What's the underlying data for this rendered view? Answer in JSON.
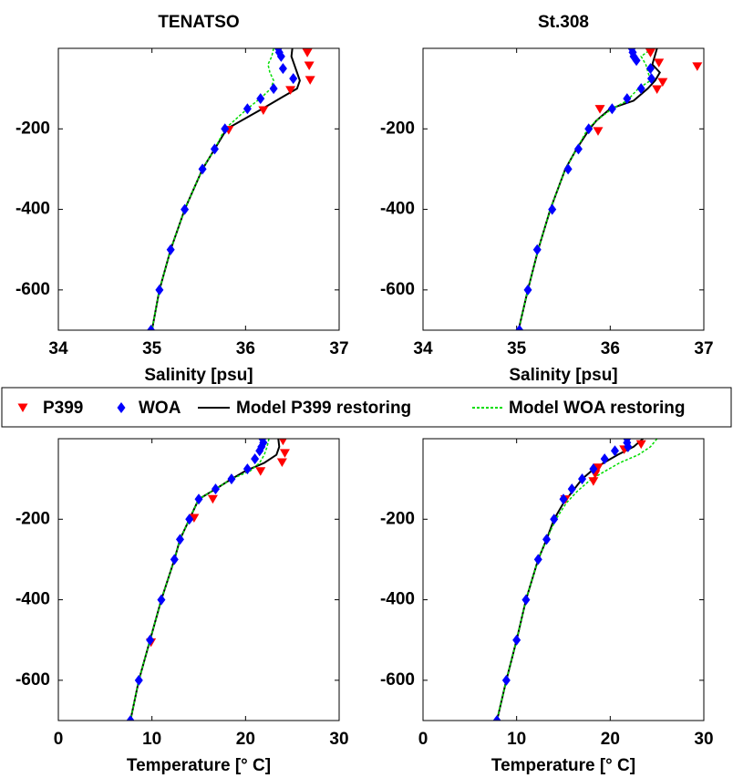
{
  "chart_data": [
    {
      "type": "line",
      "title": "TENATSO",
      "xlabel": "Salinity [psu]",
      "xlim": [
        34,
        37
      ],
      "ylim": [
        -700,
        0
      ],
      "xticks": [
        34,
        35,
        36,
        37
      ],
      "yticks": [
        -600,
        -400,
        -200
      ],
      "series": [
        {
          "name": "P399",
          "color": "#ff0000",
          "marker": "triangle-down",
          "linestyle": null,
          "x": [
            36.66,
            36.68,
            36.69,
            36.48,
            36.19,
            35.82
          ],
          "y": [
            -11,
            -43,
            -79,
            -104,
            -154,
            -203
          ]
        },
        {
          "name": "WOA",
          "color": "#0000ff",
          "marker": "diamond",
          "linestyle": null,
          "x": [
            36.35,
            36.36,
            36.38,
            36.4,
            36.51,
            36.3,
            36.16,
            36.02,
            35.78,
            35.67,
            35.54,
            35.35,
            35.2,
            35.08,
            34.99
          ],
          "y": [
            0,
            -10,
            -20,
            -50,
            -75,
            -100,
            -125,
            -150,
            -200,
            -250,
            -300,
            -400,
            -500,
            -600,
            -700
          ]
        },
        {
          "name": "Model P399 restoring",
          "color": "#000000",
          "marker": null,
          "linestyle": "solid",
          "x": [
            36.5,
            36.49,
            36.52,
            36.55,
            36.58,
            36.55,
            36.4,
            36.18,
            35.8,
            35.67,
            35.54,
            35.35,
            35.2,
            35.08,
            35.0
          ],
          "y": [
            0,
            -20,
            -40,
            -60,
            -80,
            -100,
            -120,
            -150,
            -200,
            -250,
            -300,
            -400,
            -500,
            -600,
            -700
          ]
        },
        {
          "name": "Model WOA restoring",
          "color": "#00dd00",
          "marker": null,
          "linestyle": "dotted",
          "x": [
            36.3,
            36.28,
            36.24,
            36.26,
            36.3,
            36.27,
            36.18,
            36.02,
            35.78,
            35.67,
            35.54,
            35.35,
            35.2,
            35.08,
            35.0
          ],
          "y": [
            0,
            -20,
            -40,
            -60,
            -80,
            -100,
            -120,
            -150,
            -200,
            -250,
            -300,
            -400,
            -500,
            -600,
            -700
          ]
        }
      ]
    },
    {
      "type": "line",
      "title": "St.308",
      "xlabel": "Salinity [psu]",
      "xlim": [
        34,
        37
      ],
      "ylim": [
        -700,
        0
      ],
      "xticks": [
        34,
        35,
        36,
        37
      ],
      "yticks": [
        -600,
        -400,
        -200
      ],
      "series": [
        {
          "color": "#ff0000",
          "marker": "triangle-down",
          "linestyle": null,
          "x": [
            36.43,
            36.52,
            36.93,
            36.56,
            36.5,
            35.89,
            35.87
          ],
          "y": [
            -11,
            -36,
            -45,
            -84,
            -102,
            -151,
            -206
          ]
        },
        {
          "color": "#0000ff",
          "marker": "diamond",
          "linestyle": null,
          "x": [
            36.23,
            36.24,
            36.25,
            36.28,
            36.43,
            36.44,
            36.33,
            36.18,
            36.02,
            35.77,
            35.66,
            35.55,
            35.38,
            35.22,
            35.12,
            35.03
          ],
          "y": [
            0,
            -10,
            -20,
            -30,
            -50,
            -75,
            -100,
            -125,
            -150,
            -200,
            -250,
            -300,
            -400,
            -500,
            -600,
            -700
          ]
        },
        {
          "color": "#000000",
          "marker": null,
          "linestyle": "solid",
          "x": [
            36.5,
            36.45,
            36.53,
            36.48,
            36.4,
            36.25,
            36.0,
            35.85,
            35.78,
            35.64,
            35.52,
            35.36,
            35.23,
            35.12,
            35.02
          ],
          "y": [
            0,
            -40,
            -60,
            -80,
            -100,
            -130,
            -150,
            -180,
            -200,
            -250,
            -300,
            -400,
            -500,
            -600,
            -700
          ]
        },
        {
          "color": "#00dd00",
          "marker": null,
          "linestyle": "dotted",
          "x": [
            36.45,
            36.33,
            36.38,
            36.43,
            36.3,
            36.18,
            36.02,
            35.85,
            35.76,
            35.64,
            35.52,
            35.36,
            35.23,
            35.12,
            35.02
          ],
          "y": [
            0,
            -20,
            -40,
            -80,
            -100,
            -130,
            -150,
            -180,
            -200,
            -250,
            -300,
            -400,
            -500,
            -600,
            -700
          ]
        }
      ]
    },
    {
      "type": "line",
      "xlabel": "Temperature [° C]",
      "xlim": [
        0,
        30
      ],
      "ylim": [
        -700,
        0
      ],
      "xticks": [
        0,
        10,
        20,
        30
      ],
      "yticks": [
        -600,
        -400,
        -200
      ],
      "series": [
        {
          "color": "#ff0000",
          "marker": "triangle-down",
          "linestyle": null,
          "x": [
            24.0,
            24.2,
            23.9,
            21.6,
            16.5,
            14.5,
            9.9
          ],
          "y": [
            -5,
            -36,
            -59,
            -81,
            -150,
            -197,
            -506
          ]
        },
        {
          "color": "#0000ff",
          "marker": "diamond",
          "linestyle": null,
          "x": [
            21.8,
            21.9,
            21.7,
            21.5,
            21.0,
            20.2,
            18.5,
            16.8,
            15.0,
            14.0,
            13.0,
            12.4,
            11.0,
            9.8,
            8.6,
            7.7
          ],
          "y": [
            0,
            -10,
            -20,
            -30,
            -50,
            -75,
            -100,
            -125,
            -150,
            -200,
            -250,
            -300,
            -400,
            -500,
            -600,
            -700
          ]
        },
        {
          "color": "#000000",
          "marker": null,
          "linestyle": "solid",
          "x": [
            23.5,
            23.6,
            23.3,
            22.0,
            20.0,
            18.5,
            16.8,
            15.0,
            14.0,
            13.0,
            12.4,
            11.0,
            9.8,
            8.6,
            7.7
          ],
          "y": [
            0,
            -20,
            -40,
            -60,
            -80,
            -100,
            -125,
            -150,
            -200,
            -250,
            -300,
            -400,
            -500,
            -600,
            -700
          ]
        },
        {
          "color": "#00dd00",
          "marker": null,
          "linestyle": "dotted",
          "x": [
            22.5,
            22.3,
            22.0,
            21.5,
            20.5,
            18.5,
            16.8,
            15.0,
            14.0,
            13.0,
            12.4,
            11.0,
            9.8,
            8.6,
            7.7
          ],
          "y": [
            0,
            -20,
            -40,
            -60,
            -80,
            -100,
            -125,
            -150,
            -200,
            -250,
            -300,
            -400,
            -500,
            -600,
            -700
          ]
        }
      ]
    },
    {
      "type": "line",
      "xlabel": "Temperature [° C]",
      "xlim": [
        0,
        30
      ],
      "ylim": [
        -700,
        0
      ],
      "xticks": [
        0,
        10,
        20,
        30
      ],
      "yticks": [
        -600,
        -400,
        -200
      ],
      "series": [
        {
          "color": "#ff0000",
          "marker": "triangle-down",
          "linestyle": null,
          "x": [
            23.3,
            21.5,
            18.7,
            18.4,
            18.2,
            15.2
          ],
          "y": [
            -14,
            -27,
            -72,
            -88,
            -106,
            -151
          ]
        },
        {
          "color": "#0000ff",
          "marker": "diamond",
          "linestyle": null,
          "x": [
            21.8,
            21.8,
            21.9,
            20.5,
            19.4,
            18.2,
            17.0,
            15.9,
            15.0,
            14.0,
            13.2,
            12.3,
            11.0,
            10.0,
            8.9,
            7.9
          ],
          "y": [
            0,
            -10,
            -20,
            -30,
            -50,
            -75,
            -100,
            -125,
            -150,
            -200,
            -250,
            -300,
            -400,
            -500,
            -600,
            -700
          ]
        },
        {
          "color": "#000000",
          "marker": null,
          "linestyle": "solid",
          "x": [
            23.5,
            22.5,
            20.8,
            19.3,
            18.0,
            17.0,
            16.0,
            15.0,
            14.0,
            13.2,
            12.3,
            11.0,
            10.0,
            8.9,
            7.9
          ],
          "y": [
            0,
            -20,
            -40,
            -60,
            -80,
            -100,
            -130,
            -160,
            -200,
            -250,
            -300,
            -400,
            -500,
            -600,
            -700
          ]
        },
        {
          "color": "#00dd00",
          "marker": null,
          "linestyle": "dotted",
          "x": [
            25.0,
            24.3,
            23.0,
            21.0,
            19.5,
            18.0,
            16.5,
            15.3,
            14.2,
            13.2,
            12.3,
            11.0,
            10.0,
            8.9,
            7.9
          ],
          "y": [
            0,
            -20,
            -40,
            -60,
            -80,
            -100,
            -130,
            -160,
            -200,
            -250,
            -300,
            -400,
            -500,
            -600,
            -700
          ]
        }
      ]
    }
  ]
}
